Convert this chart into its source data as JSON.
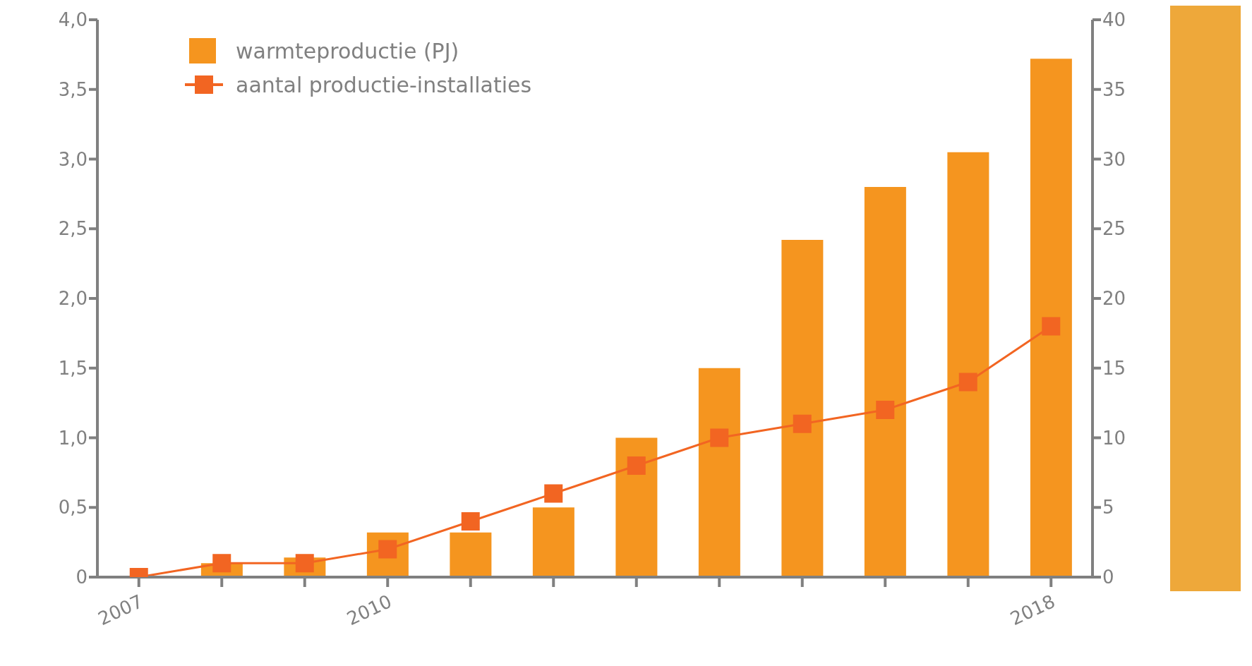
{
  "chart_data": {
    "type": "bar",
    "categories": [
      "2007",
      null,
      null,
      "2010",
      null,
      null,
      null,
      null,
      null,
      null,
      null,
      "2018"
    ],
    "series": [
      {
        "name": "warmteproductie (PJ)",
        "color": "#f5951f",
        "values": [
          0,
          0.1,
          0.14,
          0.32,
          0.32,
          0.5,
          1.0,
          1.5,
          2.42,
          2.8,
          3.05,
          3.72
        ]
      },
      {
        "name": "aantal productie-installaties",
        "type": "line",
        "axis": "y2",
        "color": "#f26522",
        "values": [
          0,
          1,
          1,
          2,
          4,
          6,
          8,
          10,
          11,
          12,
          14,
          18
        ]
      }
    ],
    "ylim": [
      0,
      4
    ],
    "yticks": [
      0,
      {
        "value": 0.5,
        "label": "0,5"
      },
      {
        "value": 1,
        "label": "1,0"
      },
      {
        "value": 1.5,
        "label": "1,5"
      },
      {
        "value": 2,
        "label": "2,0"
      },
      {
        "value": 2.5,
        "label": "2,5"
      },
      {
        "value": 3,
        "label": "3,0"
      },
      {
        "value": 3.5,
        "label": "3,5"
      },
      {
        "value": 4,
        "label": "4,0"
      }
    ],
    "y2lim": [
      0,
      40
    ],
    "y2ticks": [
      0,
      5,
      10,
      15,
      20,
      25,
      30,
      35,
      40
    ],
    "grid": false,
    "legend": "top left",
    "marker": "square",
    "line_style": "solid"
  }
}
